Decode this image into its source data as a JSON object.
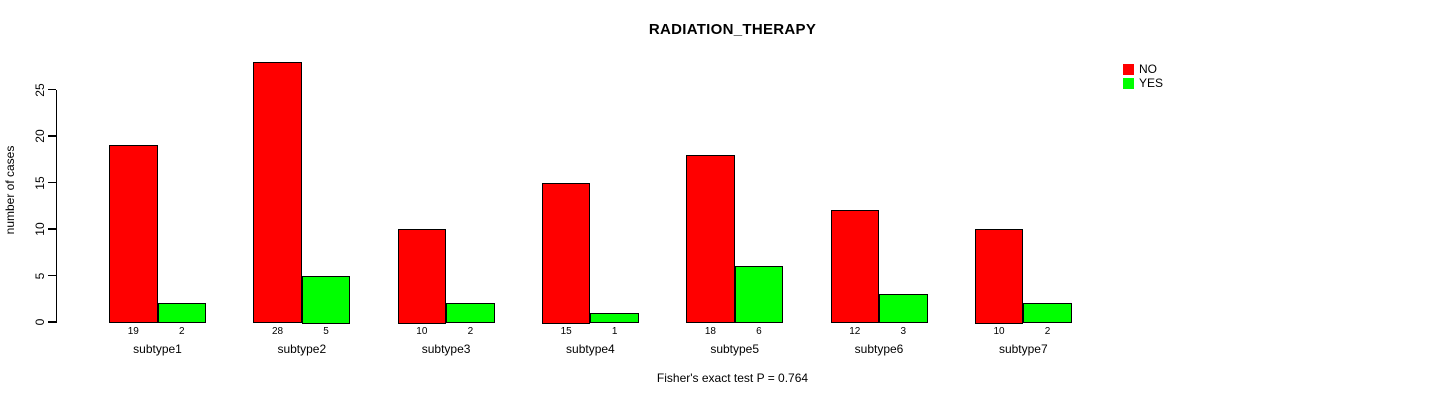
{
  "title": "RADIATION_THERAPY",
  "caption": "Fisher's exact test P = 0.764",
  "legend": {
    "items": [
      {
        "label": "NO",
        "color": "#ff0000"
      },
      {
        "label": "YES",
        "color": "#00ff00"
      }
    ]
  },
  "colors": {
    "no": "#ff0000",
    "yes": "#00ff00",
    "axis": "#000000",
    "background": "#ffffff"
  },
  "chart_data": {
    "type": "bar",
    "title": "RADIATION_THERAPY",
    "categories": [
      "subtype1",
      "subtype2",
      "subtype3",
      "subtype4",
      "subtype5",
      "subtype6",
      "subtype7"
    ],
    "series": [
      {
        "name": "NO",
        "color": "#ff0000",
        "values": [
          19,
          28,
          10,
          15,
          18,
          12,
          10
        ]
      },
      {
        "name": "YES",
        "color": "#00ff00",
        "values": [
          2,
          5,
          2,
          1,
          6,
          3,
          2
        ]
      }
    ],
    "xlabel": "",
    "ylabel": "number of cases",
    "yticks": [
      0,
      5,
      10,
      15,
      20,
      25
    ],
    "ylim": [
      0,
      28
    ],
    "grid": false,
    "legend_position": "top-right",
    "bar_value_labels": true,
    "annotation": "Fisher's exact test P = 0.764"
  }
}
